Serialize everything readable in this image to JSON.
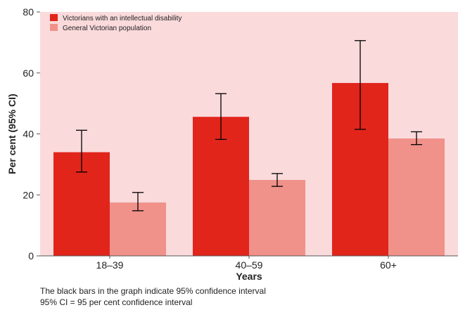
{
  "chart_data": {
    "type": "bar",
    "title": "",
    "xlabel": "Years",
    "ylabel": "Per cent (95% CI)",
    "categories": [
      "18–39",
      "40–59",
      "60+"
    ],
    "ylim": [
      0,
      80
    ],
    "yticks": [
      0,
      20,
      40,
      60,
      80
    ],
    "grid": false,
    "legend_position": "top-left",
    "series": [
      {
        "name": "Victorians with an intellectual disability",
        "color": "#e1251b",
        "values": [
          34,
          45.6,
          56.7
        ],
        "ci_low": [
          27.5,
          38.2,
          41.5
        ],
        "ci_high": [
          41.2,
          53.2,
          70.6
        ]
      },
      {
        "name": "General Victorian population",
        "color": "#f0918a",
        "values": [
          17.5,
          24.9,
          38.5
        ],
        "ci_low": [
          14.8,
          22.8,
          36.5
        ],
        "ci_high": [
          20.8,
          27,
          40.7
        ]
      }
    ],
    "plot_background": "#fadadb"
  },
  "notes": {
    "line1": "The black bars in the graph indicate 95% confidence interval",
    "line2": "95% CI = 95 per cent confidence interval"
  }
}
